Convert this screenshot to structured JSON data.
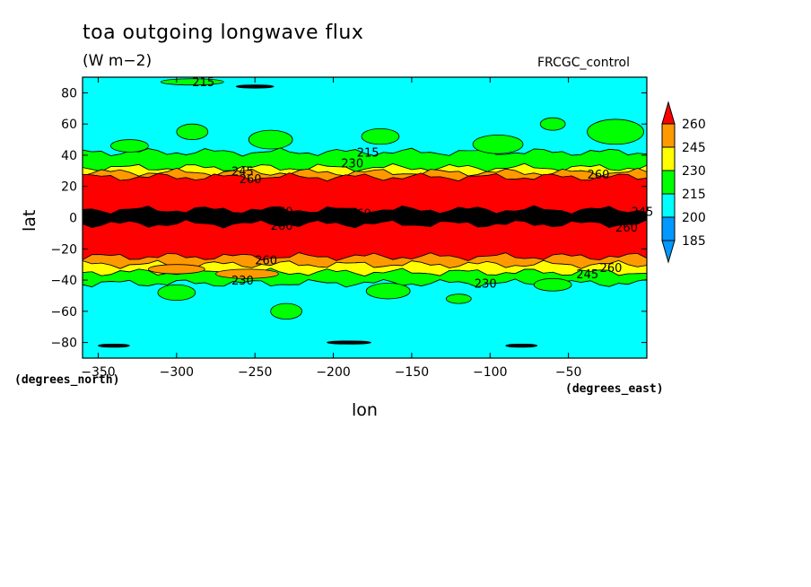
{
  "chart_data": {
    "type": "heatmap",
    "title": "toa outgoing longwave flux",
    "subtitle": "(W m−2)",
    "annotation": "FRCGC_control",
    "xlabel": "lon",
    "ylabel": "lat",
    "x_units": "(degrees_east)",
    "y_units": "(degrees_north)",
    "xlim": [
      -360,
      0
    ],
    "ylim": [
      -90,
      90
    ],
    "x_ticks": [
      -350,
      -300,
      -250,
      -200,
      -150,
      -100,
      -50
    ],
    "x_tick_labels": [
      "−350",
      "−300",
      "−250",
      "−200",
      "−150",
      "−100",
      "−50"
    ],
    "y_ticks": [
      80,
      60,
      40,
      20,
      0,
      -20,
      -40,
      -60,
      -80
    ],
    "y_tick_labels": [
      "80",
      "60",
      "40",
      "20",
      "0",
      "−20",
      "−40",
      "−60",
      "−80"
    ],
    "colorbar": {
      "levels": [
        260,
        245,
        230,
        215,
        200,
        185
      ],
      "level_labels": [
        "260",
        "245",
        "230",
        "215",
        "200",
        "185"
      ],
      "colors": [
        "#ff0000",
        "#ff9900",
        "#ffff00",
        "#00ff00",
        "#00ffff",
        "#0099ff"
      ],
      "over_color": "#ff0000",
      "under_color": "#0099ff"
    },
    "zonal_bands": [
      {
        "lat_from": 90,
        "lat_to": 42,
        "flux_class": "200-215",
        "color": "#00ffff"
      },
      {
        "lat_from": 42,
        "lat_to": 32,
        "flux_class": "215-230",
        "color": "#00ff00"
      },
      {
        "lat_from": 32,
        "lat_to": 29,
        "flux_class": "230-245",
        "color": "#ffff00"
      },
      {
        "lat_from": 29,
        "lat_to": 26,
        "flux_class": "245-260",
        "color": "#ff9900"
      },
      {
        "lat_from": 26,
        "lat_to": 5,
        "flux_class": ">260",
        "color": "#ff0000"
      },
      {
        "lat_from": 5,
        "lat_to": -4,
        "flux_class": "ITCZ contours",
        "color": "#000000"
      },
      {
        "lat_from": -4,
        "lat_to": -25,
        "flux_class": ">260",
        "color": "#ff0000"
      },
      {
        "lat_from": -25,
        "lat_to": -30,
        "flux_class": "245-260",
        "color": "#ff9900"
      },
      {
        "lat_from": -30,
        "lat_to": -35,
        "flux_class": "230-245",
        "color": "#ffff00"
      },
      {
        "lat_from": -35,
        "lat_to": -42,
        "flux_class": "215-230",
        "color": "#00ff00"
      },
      {
        "lat_from": -42,
        "lat_to": -90,
        "flux_class": "200-215",
        "color": "#00ffff"
      }
    ],
    "contour_labels": [
      {
        "text": "215",
        "lon": -290,
        "lat": 87
      },
      {
        "text": "230",
        "lon": -195,
        "lat": 35
      },
      {
        "text": "215",
        "lon": -185,
        "lat": 42
      },
      {
        "text": "245",
        "lon": -265,
        "lat": 30
      },
      {
        "text": "260",
        "lon": -260,
        "lat": 25
      },
      {
        "text": "260",
        "lon": -38,
        "lat": 28
      },
      {
        "text": "260",
        "lon": -240,
        "lat": 4
      },
      {
        "text": "260",
        "lon": -190,
        "lat": 3
      },
      {
        "text": "245",
        "lon": -10,
        "lat": 4
      },
      {
        "text": "260",
        "lon": -20,
        "lat": -6
      },
      {
        "text": "260",
        "lon": -240,
        "lat": -5
      },
      {
        "text": "260",
        "lon": -250,
        "lat": -27
      },
      {
        "text": "230",
        "lon": -265,
        "lat": -40
      },
      {
        "text": "230",
        "lon": -110,
        "lat": -42
      },
      {
        "text": "260",
        "lon": -30,
        "lat": -32
      },
      {
        "text": "245",
        "lon": -45,
        "lat": -36
      }
    ]
  }
}
